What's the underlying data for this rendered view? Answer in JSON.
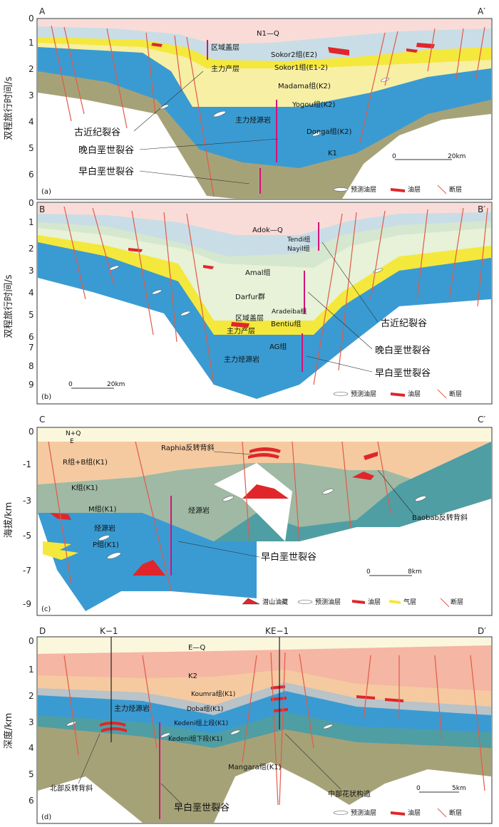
{
  "panels": [
    {
      "id": "a",
      "start": "A",
      "end": "A′",
      "tag": "(a)",
      "ytitle": "双程旅行时间/s",
      "yticks": [
        "0",
        "1",
        "2",
        "3",
        "4",
        "5",
        "6"
      ],
      "labels": {
        "nq": "N1—Q",
        "sokor2": "Sokor2组(E2)",
        "sokor1": "Sokor1组(E1-2)",
        "madama": "Madama组(K2)",
        "yogou": "Yogou组(K2)",
        "donga": "Donga组(K2)",
        "k1": "K1",
        "seal": "区域盖层",
        "reservoir": "主力产层",
        "source": "主力烃源岩",
        "rift1": "古近纪裂谷",
        "rift2": "晚白垩世裂谷",
        "rift3": "早白垩世裂谷"
      },
      "scale": {
        "zero": "0",
        "dist": "20km"
      },
      "legend": [
        "预测油层",
        "油层",
        "断层"
      ]
    },
    {
      "id": "b",
      "start": "B",
      "end": "B′",
      "tag": "(b)",
      "ytitle": "双程旅行时间/s",
      "yticks": [
        "0",
        "1",
        "2",
        "3",
        "4",
        "5",
        "6",
        "7",
        "8",
        "9"
      ],
      "labels": {
        "adok": "Adok—Q",
        "tendi": "Tendi组",
        "nayil": "Nayil组",
        "amal": "Amal组",
        "darfur": "Darfur群",
        "aradeiba": "Aradeiba组",
        "seal": "区域盖层",
        "bentiu": "Bentiu组",
        "reservoir": "主力产层",
        "ag": "AG组",
        "source": "主力烃源岩",
        "rift1": "古近纪裂谷",
        "rift2": "晚白垩世裂谷",
        "rift3": "早白垩世裂谷"
      },
      "scale": {
        "zero": "0",
        "dist": "20km"
      },
      "legend": [
        "预测油层",
        "油层",
        "断层"
      ]
    },
    {
      "id": "c",
      "start": "C",
      "end": "C′",
      "tag": "(c)",
      "ytitle": "海拔/km",
      "yticks": [
        "0",
        "-1",
        "-3",
        "-5",
        "-7",
        "-9"
      ],
      "labels": {
        "nq": "N+Q",
        "e": "E",
        "rb": "R组+B组(K1)",
        "k": "K组(K1)",
        "m": "M组(K1)",
        "src1": "烃源岩",
        "p": "P组(K1)",
        "src2": "烃源岩",
        "raphia": "Raphia反转背斜",
        "baobab": "Baobab反转背斜",
        "rift3": "早白垩世裂谷"
      },
      "scale": {
        "zero": "0",
        "dist": "8km"
      },
      "legend": [
        "潜山油藏",
        "预测油层",
        "油层",
        "气层",
        "断层"
      ]
    },
    {
      "id": "d",
      "start": "D",
      "end": "D′",
      "tag": "(d)",
      "ytitle": "深度/km",
      "yticks": [
        "0",
        "1",
        "2",
        "3",
        "4",
        "5",
        "6"
      ],
      "wells": [
        "K−1",
        "KE−1"
      ],
      "labels": {
        "eq": "E—Q",
        "k2": "K2",
        "koumra": "Koumra组(K1)",
        "doba": "Doba组(K1)",
        "kedeni_u": "Kedeni组上段(K1)",
        "kedeni_l": "Kedeni组下段(K1)",
        "mangara": "Mangara组(K1)",
        "source": "主力烃源岩",
        "north": "北部反转背斜",
        "flower": "中部花状构造",
        "rift3": "早白垩世裂谷"
      },
      "scale": {
        "zero": "0",
        "dist": "5km"
      },
      "legend": [
        "预测油层",
        "油层",
        "断层"
      ]
    }
  ],
  "colors": {
    "quat": "#f9dcd8",
    "paleo": "#c9dde6",
    "yellow": "#f4e83c",
    "paleYellow": "#f7efa4",
    "blue": "#3a9bd2",
    "khaki": "#a6a278",
    "oil": "#e0262a",
    "fault": "#e25a4a",
    "arrow": "#d3137a",
    "tan": "#f5caa0",
    "sage": "#9fb9a4",
    "teal": "#4f9ea3",
    "cream": "#fbf7dc",
    "salmon": "#f5b6a3",
    "gray": "#b9c3c8"
  }
}
